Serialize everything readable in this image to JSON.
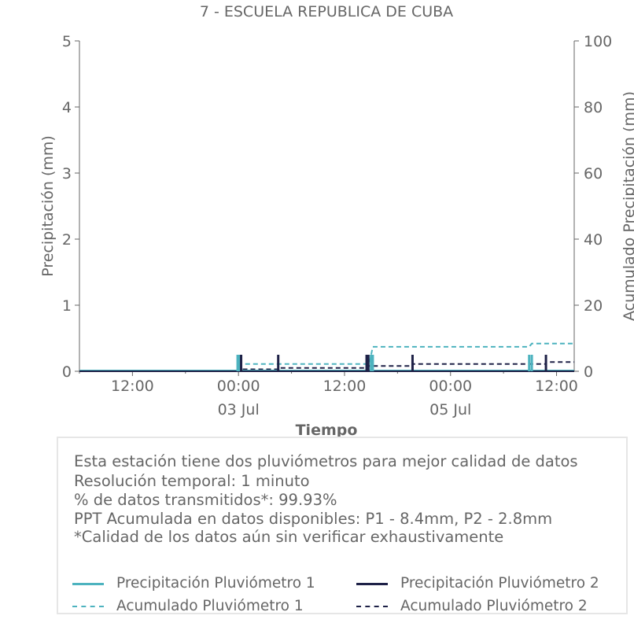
{
  "chart_data": {
    "type": "bar",
    "title": "7 - ESCUELA REPUBLICA DE CUBA",
    "xlabel": "Tiempo",
    "ylabel": "Precipitación (mm)",
    "y2label": "Acumulado Precipitación (mm)",
    "xlim": [
      -18,
      38
    ],
    "ylim": [
      0,
      5
    ],
    "y2lim": [
      0,
      100
    ],
    "y_ticks": [
      0,
      1,
      2,
      3,
      4,
      5
    ],
    "y2_ticks": [
      0,
      20,
      40,
      60,
      80,
      100
    ],
    "x_ticks": [
      {
        "x": -12,
        "label": "12:00",
        "sublabel": ""
      },
      {
        "x": 0,
        "label": "00:00",
        "sublabel": "03 Jul"
      },
      {
        "x": 12,
        "label": "12:00",
        "sublabel": ""
      },
      {
        "x": 24,
        "label": "00:00",
        "sublabel": "05 Jul"
      },
      {
        "x": 36,
        "label": "12:00",
        "sublabel": ""
      }
    ],
    "x_unit": "hours relative to 03 Jul 00:00",
    "grid": false,
    "series": [
      {
        "name": "Precipitación Pluviómetro 1",
        "kind": "bar",
        "color": "#4db3bf",
        "points": [
          {
            "x": -0.1,
            "y": 0.25
          },
          {
            "x": 0.15,
            "y": 0.25
          },
          {
            "x": 15.0,
            "y": 0.25
          },
          {
            "x": 15.2,
            "y": 0.25
          },
          {
            "x": 32.9,
            "y": 0.25
          },
          {
            "x": 33.2,
            "y": 0.25
          }
        ]
      },
      {
        "name": "Precipitación Pluviómetro 2",
        "kind": "bar",
        "color": "#1e2147",
        "points": [
          {
            "x": 0.3,
            "y": 0.25
          },
          {
            "x": 4.5,
            "y": 0.25
          },
          {
            "x": 14.5,
            "y": 0.25
          },
          {
            "x": 14.7,
            "y": 0.25
          },
          {
            "x": 19.7,
            "y": 0.25
          },
          {
            "x": 34.8,
            "y": 0.25
          }
        ]
      },
      {
        "name": "Acumulado Pluviómetro 1",
        "kind": "step",
        "color": "#4db3bf",
        "points": [
          [
            -18,
            0
          ],
          [
            -0.1,
            0
          ],
          [
            -0.1,
            2.2
          ],
          [
            14.8,
            2.2
          ],
          [
            15.2,
            7.4
          ],
          [
            32.9,
            7.4
          ],
          [
            33.2,
            8.4
          ],
          [
            38,
            8.4
          ]
        ]
      },
      {
        "name": "Acumulado Pluviómetro 2",
        "kind": "step",
        "color": "#1e2147",
        "points": [
          [
            -18,
            0
          ],
          [
            0.3,
            0
          ],
          [
            0.3,
            0.6
          ],
          [
            4.5,
            0.6
          ],
          [
            4.5,
            1.0
          ],
          [
            14.5,
            1.0
          ],
          [
            14.5,
            1.6
          ],
          [
            19.7,
            1.6
          ],
          [
            19.7,
            2.2
          ],
          [
            34.8,
            2.2
          ],
          [
            34.8,
            2.8
          ],
          [
            38,
            2.8
          ]
        ]
      }
    ]
  },
  "info": {
    "line1": "Esta estación tiene dos pluviómetros para mejor calidad de datos",
    "line2": "Resolución temporal: 1 minuto",
    "line3": "% de datos transmitidos*: 99.93%",
    "line4": "PPT Acumulada en datos disponibles: P1 - 8.4mm, P2 - 2.8mm",
    "line5": "*Calidad de los datos aún sin verificar exhaustivamente"
  },
  "legend": {
    "item1": "Precipitación Pluviómetro 1",
    "item2": "Precipitación Pluviómetro 2",
    "item3": "Acumulado Pluviómetro 1",
    "item4": "Acumulado Pluviómetro 2"
  }
}
